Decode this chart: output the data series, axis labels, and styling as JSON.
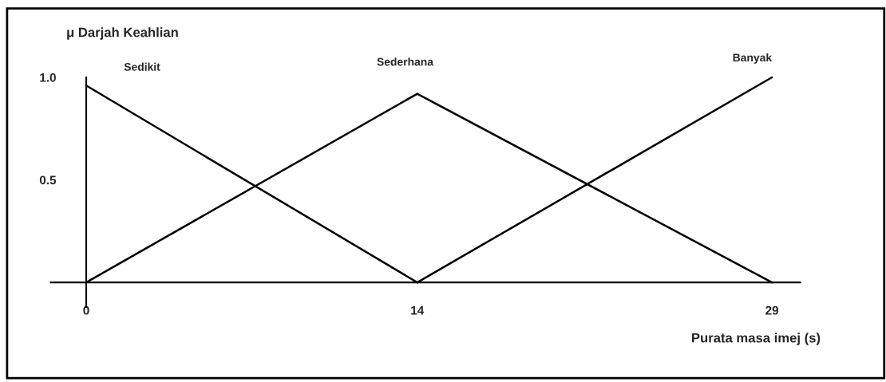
{
  "chart_data": {
    "type": "line",
    "xlabel": "Purata masa imej (s)",
    "ylabel": "μ Darjah Keahlian",
    "xlim": [
      -1.5,
      30.2
    ],
    "ylim": [
      -0.12,
      1.0
    ],
    "xticks": [
      0,
      14,
      29
    ],
    "yticks": [
      0.5,
      {
        "value": 1,
        "label": "1.0"
      }
    ],
    "grid": false,
    "legend": false,
    "marker": "none",
    "line_style": "solid",
    "series": [
      {
        "name": "Sedikit",
        "color": "#000000",
        "x": [
          0,
          14
        ],
        "values": [
          0.96,
          0
        ]
      },
      {
        "name": "Sederhana",
        "color": "#000000",
        "x": [
          0,
          14,
          29
        ],
        "values": [
          0,
          0.92,
          0
        ]
      },
      {
        "name": "Banyak",
        "color": "#000000",
        "x": [
          14,
          29
        ],
        "values": [
          0,
          1.0
        ]
      }
    ]
  }
}
